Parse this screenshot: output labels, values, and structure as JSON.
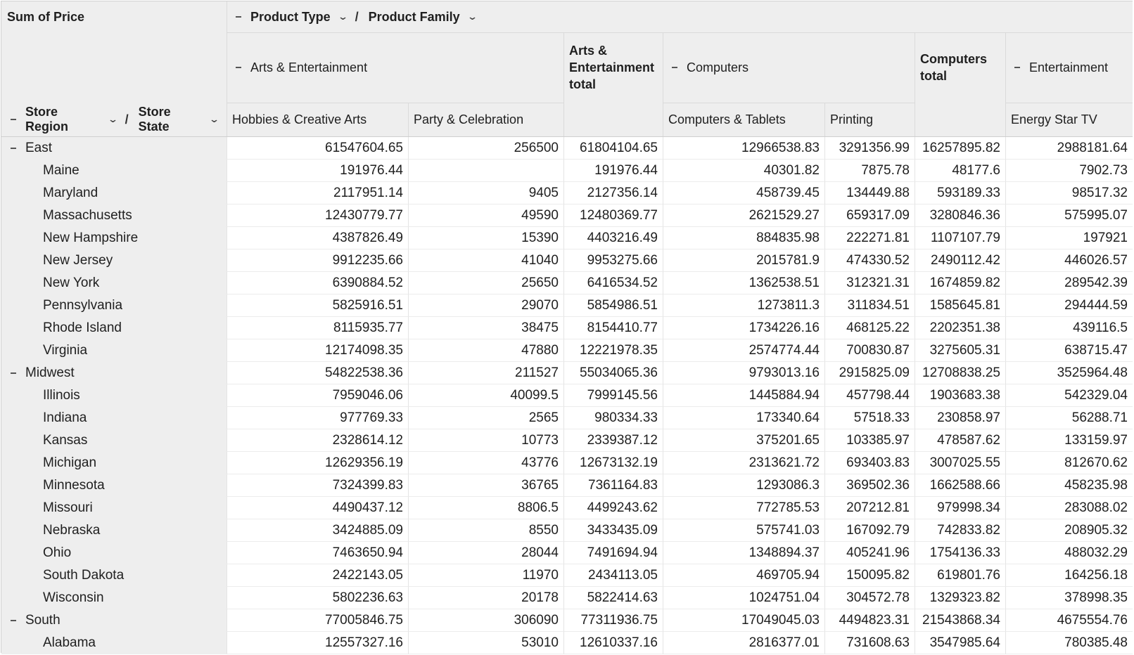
{
  "corner": {
    "measure": "Sum of Price"
  },
  "column_fields": [
    "Product Type",
    "Product Family"
  ],
  "row_fields": [
    "Store Region",
    "Store State"
  ],
  "separator": "/",
  "column_groups": [
    {
      "label": "Arts & Entertainment",
      "collapsible": true,
      "families": [
        "Hobbies & Creative Arts",
        "Party & Celebration"
      ],
      "total_label": "Arts & Entertainment total"
    },
    {
      "label": "Computers",
      "collapsible": true,
      "families": [
        "Computers & Tablets",
        "Printing"
      ],
      "total_label": "Computers total"
    },
    {
      "label": "Entertainment",
      "collapsible": true,
      "families": [
        "Energy Star TV"
      ]
    }
  ],
  "rows": [
    {
      "label": "East",
      "level": 0,
      "values": [
        "61547604.65",
        "256500",
        "61804104.65",
        "12966538.83",
        "3291356.99",
        "16257895.82",
        "2988181.64"
      ]
    },
    {
      "label": "Maine",
      "level": 1,
      "values": [
        "191976.44",
        "",
        "191976.44",
        "40301.82",
        "7875.78",
        "48177.6",
        "7902.73"
      ]
    },
    {
      "label": "Maryland",
      "level": 1,
      "values": [
        "2117951.14",
        "9405",
        "2127356.14",
        "458739.45",
        "134449.88",
        "593189.33",
        "98517.32"
      ]
    },
    {
      "label": "Massachusetts",
      "level": 1,
      "values": [
        "12430779.77",
        "49590",
        "12480369.77",
        "2621529.27",
        "659317.09",
        "3280846.36",
        "575995.07"
      ]
    },
    {
      "label": "New Hampshire",
      "level": 1,
      "values": [
        "4387826.49",
        "15390",
        "4403216.49",
        "884835.98",
        "222271.81",
        "1107107.79",
        "197921"
      ]
    },
    {
      "label": "New Jersey",
      "level": 1,
      "values": [
        "9912235.66",
        "41040",
        "9953275.66",
        "2015781.9",
        "474330.52",
        "2490112.42",
        "446026.57"
      ]
    },
    {
      "label": "New York",
      "level": 1,
      "values": [
        "6390884.52",
        "25650",
        "6416534.52",
        "1362538.51",
        "312321.31",
        "1674859.82",
        "289542.39"
      ]
    },
    {
      "label": "Pennsylvania",
      "level": 1,
      "values": [
        "5825916.51",
        "29070",
        "5854986.51",
        "1273811.3",
        "311834.51",
        "1585645.81",
        "294444.59"
      ]
    },
    {
      "label": "Rhode Island",
      "level": 1,
      "values": [
        "8115935.77",
        "38475",
        "8154410.77",
        "1734226.16",
        "468125.22",
        "2202351.38",
        "439116.5"
      ]
    },
    {
      "label": "Virginia",
      "level": 1,
      "values": [
        "12174098.35",
        "47880",
        "12221978.35",
        "2574774.44",
        "700830.87",
        "3275605.31",
        "638715.47"
      ]
    },
    {
      "label": "Midwest",
      "level": 0,
      "values": [
        "54822538.36",
        "211527",
        "55034065.36",
        "9793013.16",
        "2915825.09",
        "12708838.25",
        "3525964.48"
      ]
    },
    {
      "label": "Illinois",
      "level": 1,
      "values": [
        "7959046.06",
        "40099.5",
        "7999145.56",
        "1445884.94",
        "457798.44",
        "1903683.38",
        "542329.04"
      ]
    },
    {
      "label": "Indiana",
      "level": 1,
      "values": [
        "977769.33",
        "2565",
        "980334.33",
        "173340.64",
        "57518.33",
        "230858.97",
        "56288.71"
      ]
    },
    {
      "label": "Kansas",
      "level": 1,
      "values": [
        "2328614.12",
        "10773",
        "2339387.12",
        "375201.65",
        "103385.97",
        "478587.62",
        "133159.97"
      ]
    },
    {
      "label": "Michigan",
      "level": 1,
      "values": [
        "12629356.19",
        "43776",
        "12673132.19",
        "2313621.72",
        "693403.83",
        "3007025.55",
        "812670.62"
      ]
    },
    {
      "label": "Minnesota",
      "level": 1,
      "values": [
        "7324399.83",
        "36765",
        "7361164.83",
        "1293086.3",
        "369502.36",
        "1662588.66",
        "458235.98"
      ]
    },
    {
      "label": "Missouri",
      "level": 1,
      "values": [
        "4490437.12",
        "8806.5",
        "4499243.62",
        "772785.53",
        "207212.81",
        "979998.34",
        "283088.02"
      ]
    },
    {
      "label": "Nebraska",
      "level": 1,
      "values": [
        "3424885.09",
        "8550",
        "3433435.09",
        "575741.03",
        "167092.79",
        "742833.82",
        "208905.32"
      ]
    },
    {
      "label": "Ohio",
      "level": 1,
      "values": [
        "7463650.94",
        "28044",
        "7491694.94",
        "1348894.37",
        "405241.96",
        "1754136.33",
        "488032.29"
      ]
    },
    {
      "label": "South Dakota",
      "level": 1,
      "values": [
        "2422143.05",
        "11970",
        "2434113.05",
        "469705.94",
        "150095.82",
        "619801.76",
        "164256.18"
      ]
    },
    {
      "label": "Wisconsin",
      "level": 1,
      "values": [
        "5802236.63",
        "20178",
        "5822414.63",
        "1024751.04",
        "304572.78",
        "1329323.82",
        "378998.35"
      ]
    },
    {
      "label": "South",
      "level": 0,
      "values": [
        "77005846.75",
        "306090",
        "77311936.75",
        "17049045.03",
        "4494823.31",
        "21543868.34",
        "4675554.76"
      ]
    },
    {
      "label": "Alabama",
      "level": 1,
      "values": [
        "12557327.16",
        "53010",
        "12610337.16",
        "2816377.01",
        "731608.63",
        "3547985.64",
        "780385.48"
      ]
    }
  ]
}
